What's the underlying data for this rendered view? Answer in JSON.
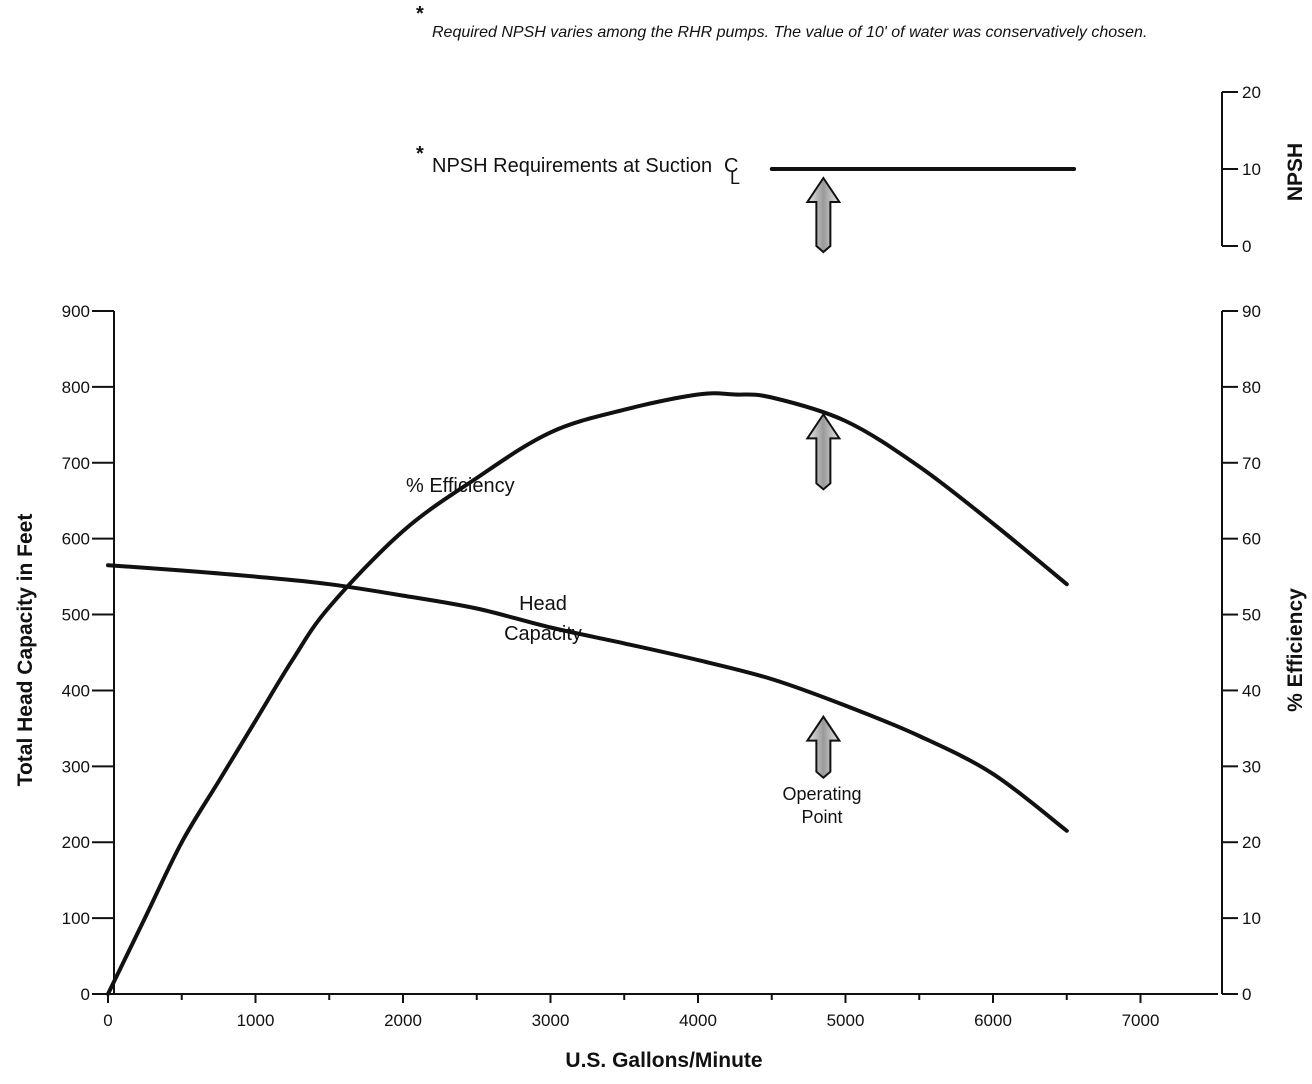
{
  "chart_data": {
    "type": "line",
    "footnote": "Required NPSH varies among the RHR pumps.  The value of 10' of water was conservatively chosen.",
    "footnote_marker": "*",
    "xlabel": "U.S. Gallons/Minute",
    "xlim": [
      0,
      7500
    ],
    "x_ticks": [
      0,
      1000,
      2000,
      3000,
      4000,
      5000,
      6000,
      7000
    ],
    "ylabel_left": "Total Head Capacity in Feet",
    "ylim_left": [
      0,
      900
    ],
    "y_ticks_left": [
      0,
      100,
      200,
      300,
      400,
      500,
      600,
      700,
      800,
      900
    ],
    "ylabel_right": "% Efficiency",
    "ylim_right": [
      0,
      90
    ],
    "y_ticks_right": [
      0,
      10,
      20,
      30,
      40,
      50,
      60,
      70,
      80,
      90
    ],
    "ylabel_npsh": "NPSH",
    "ylim_npsh": [
      0,
      20
    ],
    "y_ticks_npsh": [
      0,
      10,
      20
    ],
    "grid": false,
    "series": [
      {
        "name": "Head Capacity",
        "axis": "left",
        "x": [
          0,
          500,
          1000,
          1500,
          2000,
          2500,
          3000,
          3500,
          4000,
          4500,
          5000,
          5500,
          6000,
          6500
        ],
        "y": [
          565,
          558,
          550,
          540,
          525,
          508,
          483,
          462,
          440,
          415,
          380,
          340,
          290,
          215
        ]
      },
      {
        "name": "% Efficiency",
        "axis": "right",
        "x": [
          0,
          250,
          500,
          750,
          1000,
          1250,
          1500,
          2000,
          2500,
          3000,
          3500,
          4000,
          4250,
          4500,
          5000,
          5500,
          6000,
          6500
        ],
        "y": [
          0,
          10,
          20,
          28,
          36,
          44,
          51,
          61,
          68,
          74,
          77,
          79,
          79,
          78.6,
          75.5,
          69.5,
          62,
          54
        ]
      },
      {
        "name": "NPSH Requirements at Suction CL",
        "axis": "npsh",
        "x": [
          4500,
          6550
        ],
        "y": [
          10,
          10
        ]
      }
    ],
    "annotations": {
      "efficiency_label": "% Efficiency",
      "head_label_line1": "Head",
      "head_label_line2": "Capacity",
      "npsh_label_marker": "*",
      "npsh_label": "NPSH Requirements at Suction",
      "npsh_cl_c": "C",
      "npsh_cl_l": "L",
      "operating_point_line1": "Operating",
      "operating_point_line2": "Point",
      "operating_point_x": 4850
    }
  }
}
